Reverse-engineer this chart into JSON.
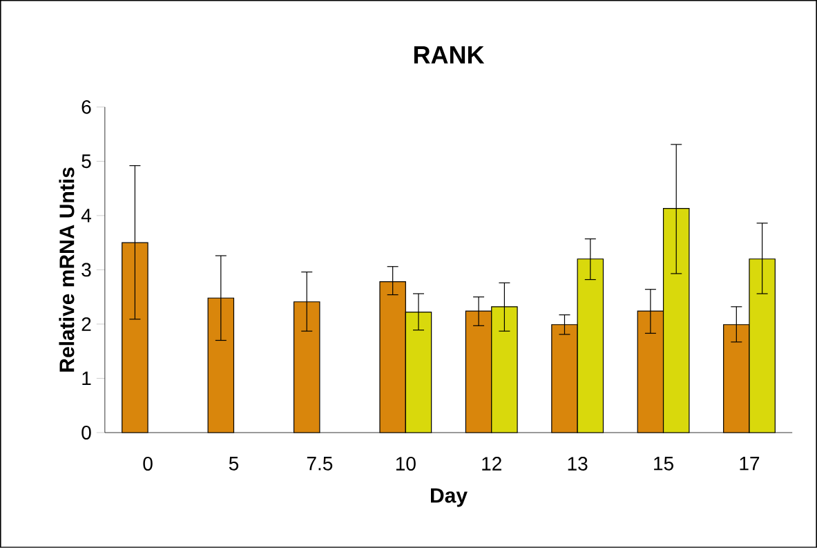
{
  "chart_data": {
    "type": "bar",
    "title": "RANK",
    "xlabel": "Day",
    "ylabel": "Relative mRNA Untis",
    "categories": [
      "0",
      "5",
      "7.5",
      "10",
      "12",
      "13",
      "15",
      "17"
    ],
    "series": [
      {
        "color": "#d9860c",
        "values": [
          3.5,
          2.48,
          2.41,
          2.78,
          2.24,
          1.99,
          2.24,
          1.99
        ],
        "errors": [
          [
            2.09,
            4.92
          ],
          [
            1.7,
            3.26
          ],
          [
            1.87,
            2.96
          ],
          [
            2.54,
            3.06
          ],
          [
            1.97,
            2.5
          ],
          [
            1.81,
            2.17
          ],
          [
            1.83,
            2.64
          ],
          [
            1.67,
            2.32
          ]
        ]
      },
      {
        "color": "#d9d90c",
        "values": [
          null,
          null,
          null,
          2.22,
          2.32,
          3.2,
          4.13,
          3.2
        ],
        "errors": [
          null,
          null,
          null,
          [
            1.89,
            2.56
          ],
          [
            1.87,
            2.76
          ],
          [
            2.82,
            3.57
          ],
          [
            2.93,
            5.31
          ],
          [
            2.56,
            3.86
          ]
        ]
      }
    ],
    "ylim": [
      0,
      6
    ],
    "yticks": [
      0,
      1,
      2,
      3,
      4,
      5,
      6
    ]
  }
}
